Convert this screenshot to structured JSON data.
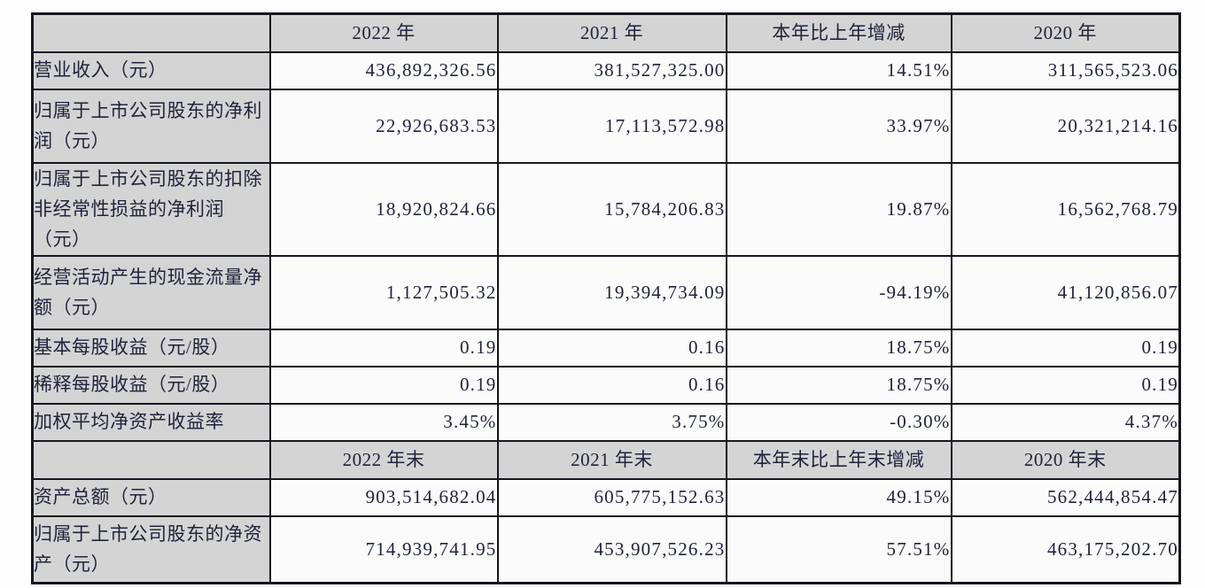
{
  "table": {
    "rows": [
      {
        "kind": "header",
        "label": "",
        "values": [
          "2022 年",
          "2021 年",
          "本年比上年增减",
          "2020 年"
        ]
      },
      {
        "kind": "data",
        "label": "营业收入（元）",
        "values": [
          "436,892,326.56",
          "381,527,325.00",
          "14.51%",
          "311,565,523.06"
        ]
      },
      {
        "kind": "data",
        "label": "归属于上市公司股东的净利润（元）",
        "values": [
          "22,926,683.53",
          "17,113,572.98",
          "33.97%",
          "20,321,214.16"
        ]
      },
      {
        "kind": "data",
        "label": "归属于上市公司股东的扣除非经常性损益的净利润（元）",
        "values": [
          "18,920,824.66",
          "15,784,206.83",
          "19.87%",
          "16,562,768.79"
        ]
      },
      {
        "kind": "data",
        "label": "经营活动产生的现金流量净额（元）",
        "values": [
          "1,127,505.32",
          "19,394,734.09",
          "-94.19%",
          "41,120,856.07"
        ]
      },
      {
        "kind": "data",
        "label": "基本每股收益（元/股）",
        "values": [
          "0.19",
          "0.16",
          "18.75%",
          "0.19"
        ]
      },
      {
        "kind": "data",
        "label": "稀释每股收益（元/股）",
        "values": [
          "0.19",
          "0.16",
          "18.75%",
          "0.19"
        ]
      },
      {
        "kind": "data",
        "label": "加权平均净资产收益率",
        "values": [
          "3.45%",
          "3.75%",
          "-0.30%",
          "4.37%"
        ]
      },
      {
        "kind": "header",
        "label": "",
        "values": [
          "2022 年末",
          "2021 年末",
          "本年末比上年末增减",
          "2020 年末"
        ]
      },
      {
        "kind": "data",
        "label": "资产总额（元）",
        "values": [
          "903,514,682.04",
          "605,775,152.63",
          "49.15%",
          "562,444,854.47"
        ]
      },
      {
        "kind": "data",
        "label": "归属于上市公司股东的净资产（元）",
        "values": [
          "714,939,741.95",
          "453,907,526.23",
          "57.51%",
          "463,175,202.70"
        ]
      }
    ]
  }
}
